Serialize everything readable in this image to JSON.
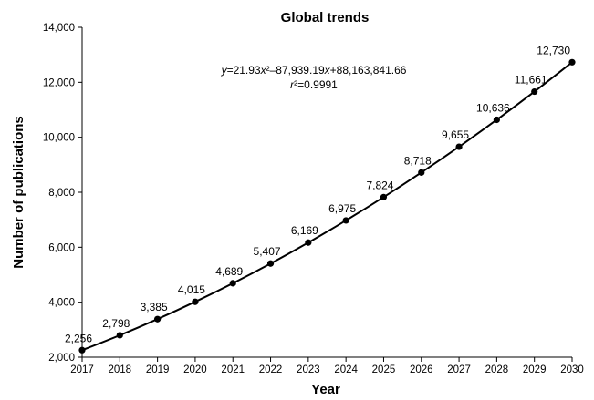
{
  "chart_data": {
    "type": "line",
    "title": "Global trends",
    "xlabel": "Year",
    "ylabel": "Number of publications",
    "x": [
      2017,
      2018,
      2019,
      2020,
      2021,
      2022,
      2023,
      2024,
      2025,
      2026,
      2027,
      2028,
      2029,
      2030
    ],
    "y": [
      2256,
      2798,
      3385,
      4015,
      4689,
      5407,
      6169,
      6975,
      7824,
      8718,
      9655,
      10636,
      11661,
      12730
    ],
    "data_labels": [
      "2,256",
      "2,798",
      "3,385",
      "4,015",
      "4,689",
      "5,407",
      "6,169",
      "6,975",
      "7,824",
      "8,718",
      "9,655",
      "10,636",
      "11,661",
      "12,730"
    ],
    "xlim": [
      2017,
      2030
    ],
    "ylim": [
      2000,
      14000
    ],
    "y_ticks": [
      2000,
      4000,
      6000,
      8000,
      10000,
      12000,
      14000
    ],
    "y_tick_labels": [
      "2,000",
      "4,000",
      "6,000",
      "8,000",
      "10,000",
      "12,000",
      "14,000"
    ],
    "x_tick_labels": [
      "2017",
      "2018",
      "2019",
      "2020",
      "2021",
      "2022",
      "2023",
      "2024",
      "2025",
      "2026",
      "2027",
      "2028",
      "2029",
      "2030"
    ],
    "grid": false,
    "annotation": {
      "equation": "y=21.93x²–87,939.19x+88,163,841.66",
      "r_squared": "r²=0.9991"
    },
    "colors": {
      "line": "#000000",
      "marker": "#000000"
    }
  }
}
